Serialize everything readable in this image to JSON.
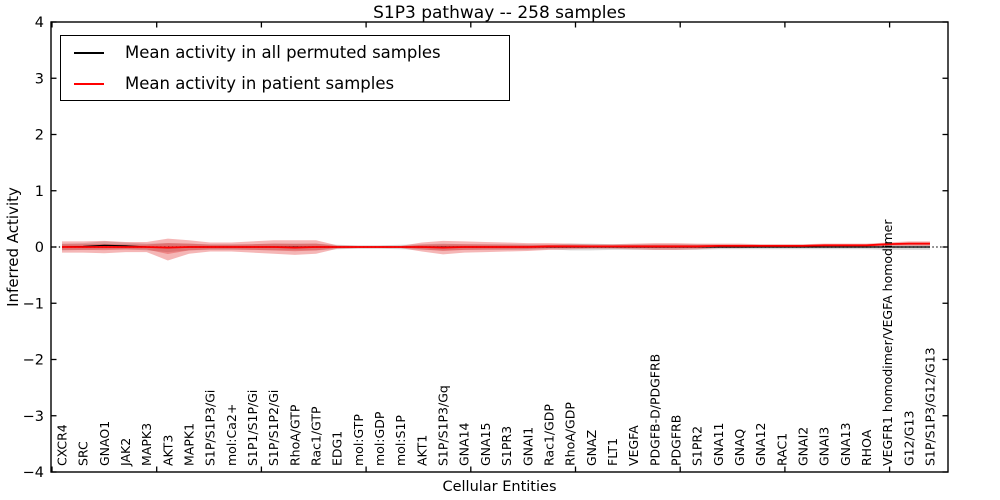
{
  "title": "S1P3 pathway -- 258 samples",
  "legend": {
    "items": [
      {
        "label": "Mean activity in all permuted samples",
        "color": "#000000"
      },
      {
        "label": "Mean activity in patient samples",
        "color": "#ff0000"
      }
    ]
  },
  "axes": {
    "xlabel": "Cellular Entities",
    "ylabel": "Inferred Activity",
    "ytick_labels": [
      "4",
      "3",
      "2",
      "1",
      "0",
      "−1",
      "−2",
      "−3",
      "−4"
    ],
    "ytick_values": [
      4,
      3,
      2,
      1,
      0,
      -1,
      -2,
      -3,
      -4
    ],
    "ylim": [
      -4,
      4
    ]
  },
  "colors": {
    "permuted_line": "#000000",
    "patient_line": "#ff0000",
    "patient_band_fill": "#e02020",
    "permuted_band_fill": "#808080",
    "frame": "#000000"
  },
  "chart_data": {
    "type": "line",
    "title": "S1P3 pathway -- 258 samples",
    "xlabel": "Cellular Entities",
    "ylabel": "Inferred Activity",
    "ylim": [
      -4,
      4
    ],
    "grid": false,
    "legend_position": "upper left",
    "zero_reference_line": "dotted",
    "categories": [
      "CXCR4",
      "SRC",
      "GNAO1",
      "JAK2",
      "MAPK3",
      "AKT3",
      "MAPK1",
      "S1P/S1P3/Gi",
      "mol:Ca2+",
      "S1P1/S1P/Gi",
      "S1P/S1P2/Gi",
      "RhoA/GTP",
      "Rac1/GTP",
      "EDG1",
      "mol:GTP",
      "mol:GDP",
      "mol:S1P",
      "AKT1",
      "S1P/S1P3/Gq",
      "GNA14",
      "GNA15",
      "S1PR3",
      "GNAI1",
      "Rac1/GDP",
      "RhoA/GDP",
      "GNAZ",
      "FLT1",
      "VEGFA",
      "PDGFB-D/PDGFRB",
      "PDGFRB",
      "S1PR2",
      "GNA11",
      "GNAQ",
      "GNA12",
      "RAC1",
      "GNAI2",
      "GNAI3",
      "GNA13",
      "RHOA",
      "VEGFR1 homodimer/VEGFA homodimer",
      "G12/G13",
      "S1P/S1P3/G12/G13"
    ],
    "series": [
      {
        "name": "Mean activity in all permuted samples",
        "color": "#000000",
        "values": [
          0,
          0.01,
          0.03,
          0.02,
          0,
          -0.01,
          0,
          0,
          0,
          0,
          0,
          0,
          0,
          0,
          0,
          0,
          0,
          0,
          0,
          0,
          0,
          0,
          0,
          0,
          0,
          0,
          0,
          0,
          0,
          0,
          0,
          0,
          0,
          0,
          0,
          0,
          0,
          0,
          0,
          0,
          0,
          0
        ],
        "band_halfwidth": [
          0.06,
          0.06,
          0.07,
          0.06,
          0.06,
          0.08,
          0.06,
          0.05,
          0.05,
          0.05,
          0.06,
          0.06,
          0.06,
          0.04,
          0.03,
          0.03,
          0.04,
          0.05,
          0.06,
          0.05,
          0.05,
          0.05,
          0.05,
          0.04,
          0.06,
          0.06,
          0.05,
          0.05,
          0.05,
          0.05,
          0.05,
          0.04,
          0.04,
          0.04,
          0.04,
          0.04,
          0.04,
          0.04,
          0.04,
          0.05,
          0.05,
          0.05
        ]
      },
      {
        "name": "Mean activity in patient samples",
        "color": "#ff0000",
        "values": [
          0,
          0,
          0,
          0,
          0,
          -0.01,
          0,
          0,
          0,
          0,
          0,
          -0.01,
          0,
          0,
          0,
          0,
          0,
          0,
          -0.01,
          0,
          0,
          0,
          0,
          0.01,
          0.01,
          0.01,
          0.01,
          0.01,
          0.01,
          0.01,
          0.01,
          0.02,
          0.02,
          0.02,
          0.02,
          0.02,
          0.03,
          0.03,
          0.03,
          0.05,
          0.06,
          0.06
        ],
        "band_upper": [
          0.1,
          0.1,
          0.11,
          0.09,
          0.09,
          0.16,
          0.12,
          0.08,
          0.08,
          0.1,
          0.12,
          0.13,
          0.12,
          0.03,
          0.02,
          0.02,
          0.02,
          0.08,
          0.12,
          0.1,
          0.09,
          0.08,
          0.07,
          0.06,
          0.05,
          0.04,
          0.04,
          0.05,
          0.06,
          0.06,
          0.05,
          0.04,
          0.04,
          0.03,
          0.03,
          0.03,
          0.03,
          0.03,
          0.03,
          0.03,
          0.04,
          0.04
        ],
        "band_lower": [
          0.1,
          0.1,
          0.11,
          0.09,
          0.09,
          0.23,
          0.12,
          0.08,
          0.08,
          0.1,
          0.12,
          0.13,
          0.12,
          0.03,
          0.02,
          0.02,
          0.02,
          0.08,
          0.12,
          0.1,
          0.09,
          0.08,
          0.07,
          0.06,
          0.05,
          0.04,
          0.04,
          0.05,
          0.06,
          0.06,
          0.05,
          0.04,
          0.04,
          0.03,
          0.03,
          0.03,
          0.03,
          0.03,
          0.03,
          0.03,
          0.04,
          0.04
        ],
        "inner_band_fraction": 0.5
      }
    ]
  }
}
